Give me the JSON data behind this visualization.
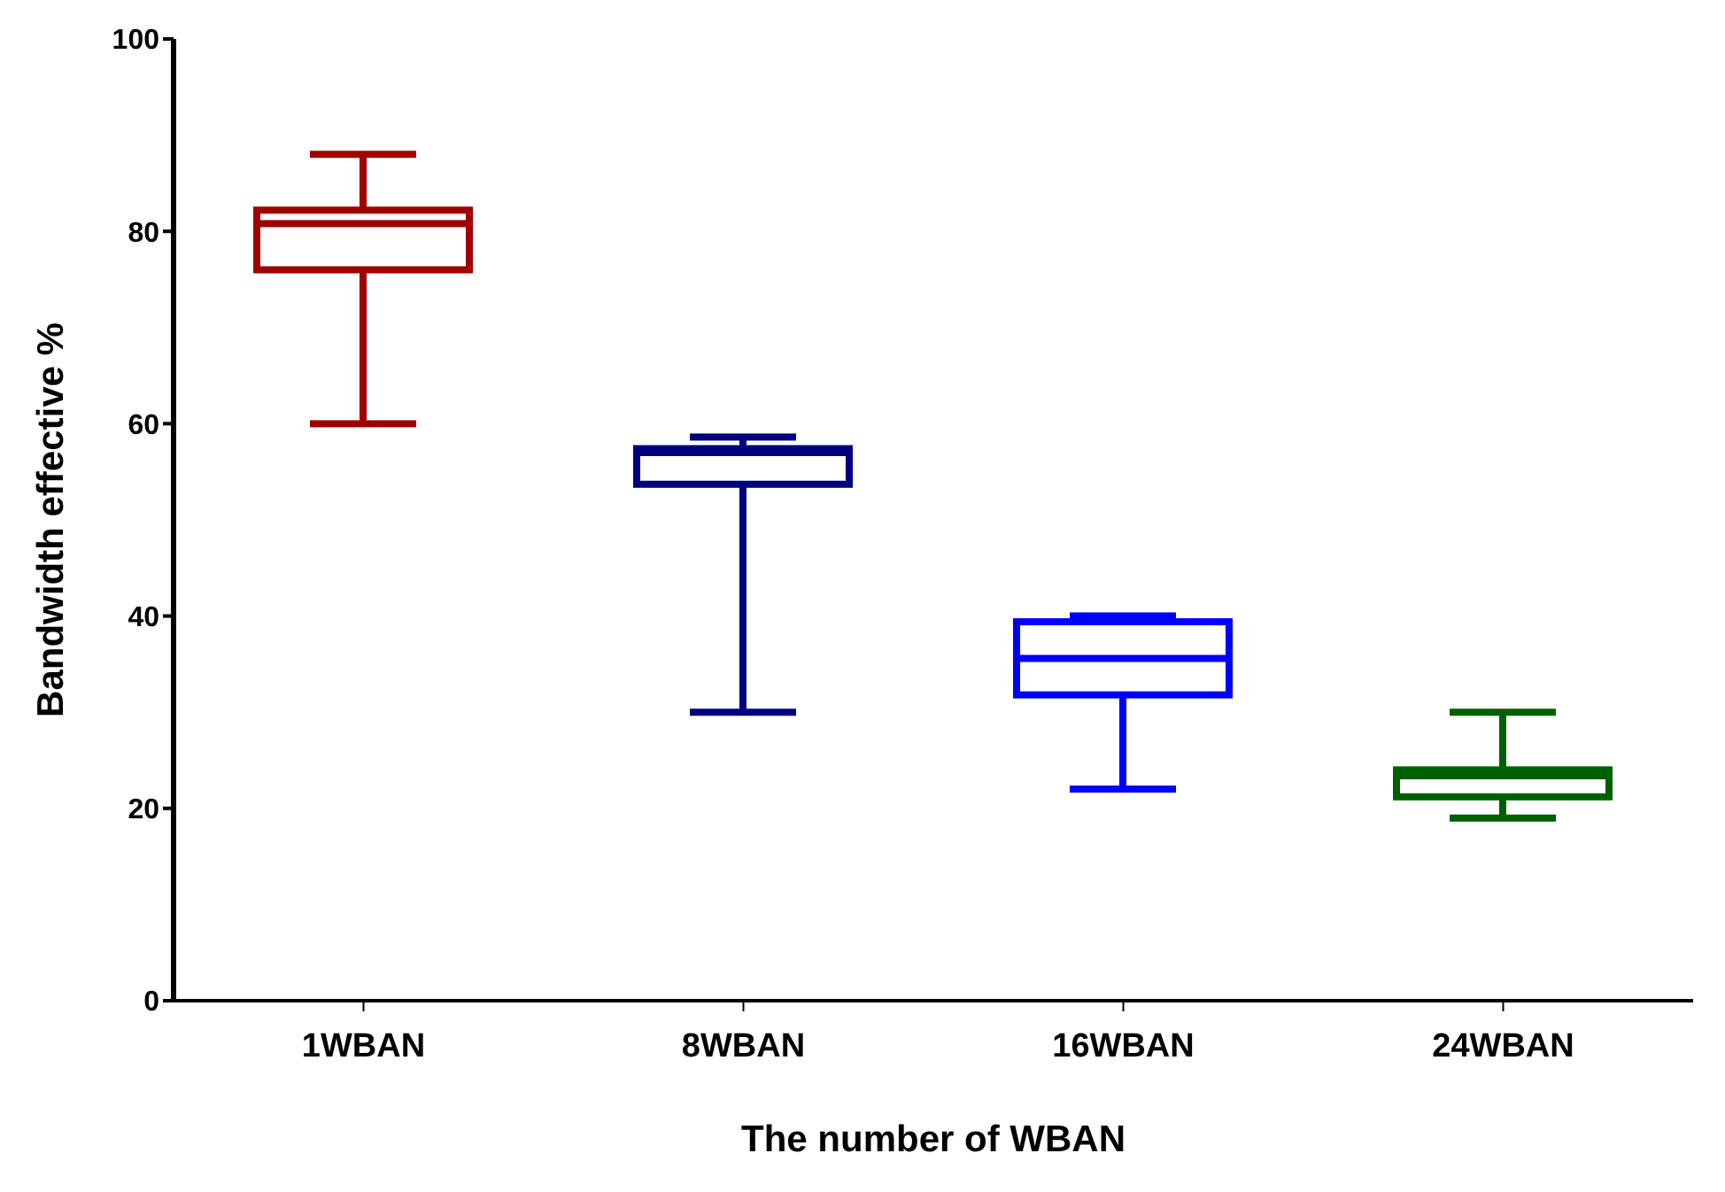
{
  "chart_data": {
    "type": "box",
    "xlabel": "The number of WBAN",
    "ylabel": "Bandwidth effective %",
    "categories": [
      "1WBAN",
      "8WBAN",
      "16WBAN",
      "24WBAN"
    ],
    "boxes": [
      {
        "low": 60,
        "q1": 76,
        "median": 80.8,
        "q3": 82.2,
        "high": 88
      },
      {
        "low": 30,
        "q1": 53.7,
        "median": 57,
        "q3": 57.4,
        "high": 58.6
      },
      {
        "low": 22,
        "q1": 31.8,
        "median": 35.6,
        "q3": 39.4,
        "high": 40
      },
      {
        "low": 19,
        "q1": 21.2,
        "median": 23.4,
        "q3": 24,
        "high": 30
      }
    ],
    "colors": [
      "#a00000",
      "#000080",
      "#0000ff",
      "#006000"
    ],
    "ylim": [
      0,
      100
    ],
    "yticks": [
      0,
      20,
      40,
      60,
      80,
      100
    ],
    "grid": false,
    "legend": false
  }
}
